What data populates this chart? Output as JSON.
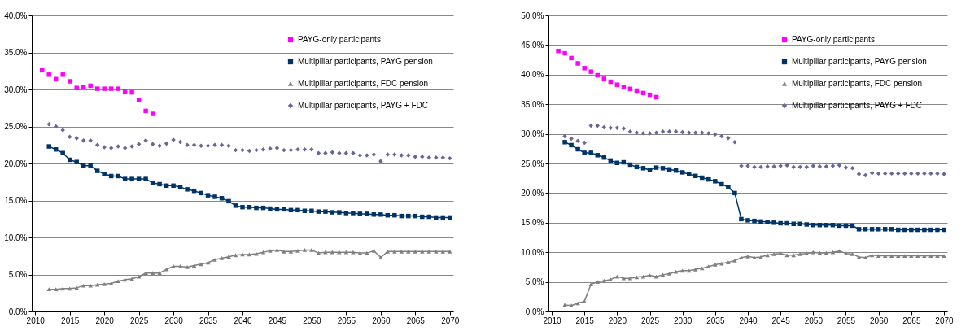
{
  "chart_data": [
    {
      "type": "scatter",
      "x": [
        2011,
        2012,
        2013,
        2014,
        2015,
        2016,
        2017,
        2018,
        2019,
        2020,
        2021,
        2022,
        2023,
        2024,
        2025,
        2026,
        2027,
        2028,
        2029,
        2030,
        2031,
        2032,
        2033,
        2034,
        2035,
        2036,
        2037,
        2038,
        2039,
        2040,
        2041,
        2042,
        2043,
        2044,
        2045,
        2046,
        2047,
        2048,
        2049,
        2050,
        2051,
        2052,
        2053,
        2054,
        2055,
        2056,
        2057,
        2058,
        2059,
        2060,
        2061,
        2062,
        2063,
        2064,
        2065,
        2066,
        2067,
        2068,
        2069,
        2070
      ],
      "series": [
        {
          "name": "PAYG-only participants",
          "marker": "square",
          "color": "#ff00ff",
          "values": [
            32.6,
            32.0,
            31.4,
            32.0,
            31.1,
            30.2,
            30.3,
            30.5,
            30.1,
            30.1,
            30.1,
            30.1,
            29.7,
            29.6,
            28.6,
            27.1,
            26.7,
            null,
            null,
            null,
            null,
            null,
            null,
            null,
            null,
            null,
            null,
            null,
            null,
            null,
            null,
            null,
            null,
            null,
            null,
            null,
            null,
            null,
            null,
            null,
            null,
            null,
            null,
            null,
            null,
            null,
            null,
            null,
            null,
            null,
            null,
            null,
            null,
            null,
            null,
            null,
            null,
            null,
            null,
            null
          ]
        },
        {
          "name": "Multipillar participants, PAYG pension",
          "type": "line",
          "marker": "square",
          "color": "#003366",
          "values": [
            null,
            22.3,
            21.9,
            21.4,
            20.5,
            20.2,
            19.7,
            19.7,
            19.0,
            18.6,
            18.3,
            18.3,
            17.9,
            17.9,
            17.9,
            17.9,
            17.4,
            17.2,
            17.0,
            17.0,
            16.8,
            16.5,
            16.3,
            16.0,
            15.7,
            15.5,
            15.3,
            14.9,
            14.3,
            14.1,
            14.1,
            14.0,
            14.0,
            13.9,
            13.8,
            13.8,
            13.7,
            13.7,
            13.6,
            13.6,
            13.5,
            13.5,
            13.4,
            13.4,
            13.3,
            13.3,
            13.2,
            13.2,
            13.1,
            13.1,
            13.0,
            13.0,
            12.9,
            12.9,
            12.9,
            12.8,
            12.8,
            12.7,
            12.7,
            12.7
          ]
        },
        {
          "name": "Multipillar participants, FDC pension",
          "type": "line",
          "marker": "triangle",
          "color": "#808080",
          "values": [
            null,
            3.0,
            3.0,
            3.1,
            3.1,
            3.2,
            3.5,
            3.5,
            3.6,
            3.7,
            3.8,
            4.1,
            4.3,
            4.4,
            4.7,
            5.2,
            5.2,
            5.2,
            5.7,
            6.1,
            6.1,
            6.0,
            6.2,
            6.4,
            6.6,
            7.0,
            7.2,
            7.4,
            7.6,
            7.7,
            7.7,
            7.8,
            8.0,
            8.2,
            8.3,
            8.1,
            8.1,
            8.2,
            8.3,
            8.3,
            7.9,
            8.0,
            8.0,
            8.0,
            8.0,
            8.0,
            7.9,
            7.9,
            8.2,
            7.3,
            8.1,
            8.1,
            8.1,
            8.1,
            8.1,
            8.1,
            8.1,
            8.1,
            8.1,
            8.1
          ]
        },
        {
          "name": "Multipillar participants, PAYG + FDC",
          "marker": "diamond",
          "color": "#666699",
          "values": [
            null,
            25.3,
            25.0,
            24.5,
            23.6,
            23.4,
            23.1,
            23.1,
            22.5,
            22.2,
            22.1,
            22.3,
            22.1,
            22.3,
            22.6,
            23.1,
            22.6,
            22.4,
            22.7,
            23.2,
            22.9,
            22.5,
            22.5,
            22.4,
            22.4,
            22.5,
            22.5,
            22.4,
            21.8,
            21.8,
            21.7,
            21.8,
            21.9,
            22.0,
            22.1,
            21.8,
            21.8,
            21.9,
            21.9,
            21.9,
            21.4,
            21.4,
            21.5,
            21.4,
            21.4,
            21.4,
            21.1,
            21.1,
            21.2,
            20.3,
            21.2,
            21.2,
            21.1,
            21.1,
            20.9,
            20.9,
            20.8,
            20.8,
            20.8,
            20.7
          ]
        }
      ],
      "xlim": [
        2009.5,
        2070.5
      ],
      "xticks": [
        2010,
        2015,
        2020,
        2025,
        2030,
        2035,
        2040,
        2045,
        2050,
        2055,
        2060,
        2065,
        2070
      ],
      "ylim": [
        0,
        40
      ],
      "yticks": [
        {
          "value": 0,
          "label": "0.0%"
        },
        {
          "value": 5,
          "label": "5.0%"
        },
        {
          "value": 10,
          "label": "10.0%"
        },
        {
          "value": 15,
          "label": "15.0%"
        },
        {
          "value": 20,
          "label": "20.0%"
        },
        {
          "value": 25,
          "label": "25.0%"
        },
        {
          "value": 30,
          "label": "30.0%"
        },
        {
          "value": 35,
          "label": "35.0%"
        },
        {
          "value": 40,
          "label": "40.0%"
        }
      ],
      "grid": "y",
      "legend": "top right"
    },
    {
      "type": "scatter",
      "x": [
        2011,
        2012,
        2013,
        2014,
        2015,
        2016,
        2017,
        2018,
        2019,
        2020,
        2021,
        2022,
        2023,
        2024,
        2025,
        2026,
        2027,
        2028,
        2029,
        2030,
        2031,
        2032,
        2033,
        2034,
        2035,
        2036,
        2037,
        2038,
        2039,
        2040,
        2041,
        2042,
        2043,
        2044,
        2045,
        2046,
        2047,
        2048,
        2049,
        2050,
        2051,
        2052,
        2053,
        2054,
        2055,
        2056,
        2057,
        2058,
        2059,
        2060,
        2061,
        2062,
        2063,
        2064,
        2065,
        2066,
        2067,
        2068,
        2069,
        2070
      ],
      "series": [
        {
          "name": "PAYG-only participants",
          "marker": "square",
          "color": "#ff00ff",
          "values": [
            44.0,
            43.6,
            42.8,
            41.9,
            41.1,
            40.5,
            39.9,
            39.3,
            38.8,
            38.3,
            37.9,
            37.6,
            37.3,
            36.9,
            36.6,
            36.2,
            null,
            null,
            null,
            null,
            null,
            null,
            null,
            null,
            null,
            null,
            null,
            null,
            null,
            null,
            null,
            null,
            null,
            null,
            null,
            null,
            null,
            null,
            null,
            null,
            null,
            null,
            null,
            null,
            null,
            null,
            null,
            null,
            null,
            null,
            null,
            null,
            null,
            null,
            null,
            null,
            null,
            null,
            null,
            null
          ]
        },
        {
          "name": "Multipillar participants, PAYG pension",
          "type": "line",
          "marker": "square",
          "color": "#003366",
          "values": [
            null,
            28.6,
            28.1,
            27.4,
            26.8,
            26.8,
            26.4,
            26.0,
            25.5,
            25.1,
            25.2,
            24.8,
            24.4,
            24.2,
            23.9,
            24.3,
            24.2,
            24.0,
            23.8,
            23.5,
            23.2,
            22.9,
            22.6,
            22.3,
            22.0,
            21.5,
            21.0,
            20.0,
            15.6,
            15.4,
            15.3,
            15.2,
            15.1,
            15.0,
            14.9,
            14.9,
            14.8,
            14.8,
            14.7,
            14.6,
            14.6,
            14.6,
            14.6,
            14.5,
            14.5,
            14.5,
            13.9,
            13.9,
            13.9,
            13.9,
            13.9,
            13.9,
            13.8,
            13.8,
            13.8,
            13.8,
            13.8,
            13.8,
            13.8,
            13.8
          ]
        },
        {
          "name": "Multipillar participants, FDC pension",
          "type": "line",
          "marker": "triangle",
          "color": "#808080",
          "values": [
            null,
            1.1,
            1.0,
            1.4,
            1.7,
            4.6,
            5.0,
            5.2,
            5.4,
            5.9,
            5.6,
            5.6,
            5.8,
            5.9,
            6.1,
            5.9,
            6.2,
            6.4,
            6.7,
            6.9,
            6.9,
            7.1,
            7.3,
            7.6,
            7.9,
            8.1,
            8.3,
            8.6,
            9.1,
            9.3,
            9.1,
            9.2,
            9.5,
            9.7,
            9.8,
            9.5,
            9.5,
            9.7,
            9.8,
            10.0,
            9.9,
            9.9,
            10.0,
            10.2,
            9.8,
            9.7,
            9.2,
            9.1,
            9.5,
            9.4,
            9.4,
            9.4,
            9.4,
            9.4,
            9.4,
            9.4,
            9.4,
            9.4,
            9.4,
            9.4
          ]
        },
        {
          "name": "Multipillar participants, PAYG + FDC",
          "marker": "diamond",
          "color": "#666699",
          "values": [
            null,
            29.6,
            29.2,
            28.8,
            28.5,
            31.4,
            31.4,
            31.1,
            31.0,
            31.0,
            30.9,
            30.4,
            30.2,
            30.1,
            30.1,
            30.2,
            30.4,
            30.4,
            30.4,
            30.3,
            30.2,
            30.2,
            30.2,
            30.1,
            29.9,
            29.6,
            29.3,
            28.6,
            24.6,
            24.6,
            24.4,
            24.4,
            24.5,
            24.5,
            24.6,
            24.7,
            24.4,
            24.4,
            24.4,
            24.6,
            24.5,
            24.5,
            24.6,
            24.7,
            24.3,
            24.2,
            23.2,
            23.0,
            23.4,
            23.3,
            23.3,
            23.3,
            23.3,
            23.3,
            23.3,
            23.3,
            23.3,
            23.3,
            23.3,
            23.2
          ]
        }
      ],
      "xlim": [
        2009.5,
        2070.5
      ],
      "xticks": [
        2010,
        2015,
        2020,
        2025,
        2030,
        2035,
        2040,
        2045,
        2050,
        2055,
        2060,
        2065,
        2070
      ],
      "ylim": [
        0,
        50
      ],
      "yticks": [
        {
          "value": 0,
          "label": "0.0%"
        },
        {
          "value": 5,
          "label": "5.0%"
        },
        {
          "value": 10,
          "label": "10.0%"
        },
        {
          "value": 15,
          "label": "15.0%"
        },
        {
          "value": 20,
          "label": "20.0%"
        },
        {
          "value": 25,
          "label": "25.0%"
        },
        {
          "value": 30,
          "label": "30.0%"
        },
        {
          "value": 35,
          "label": "35.0%"
        },
        {
          "value": 40,
          "label": "40.0%"
        },
        {
          "value": 45,
          "label": "45.0%"
        },
        {
          "value": 50,
          "label": "50.0%"
        }
      ],
      "grid": "y",
      "legend": "top right"
    }
  ]
}
